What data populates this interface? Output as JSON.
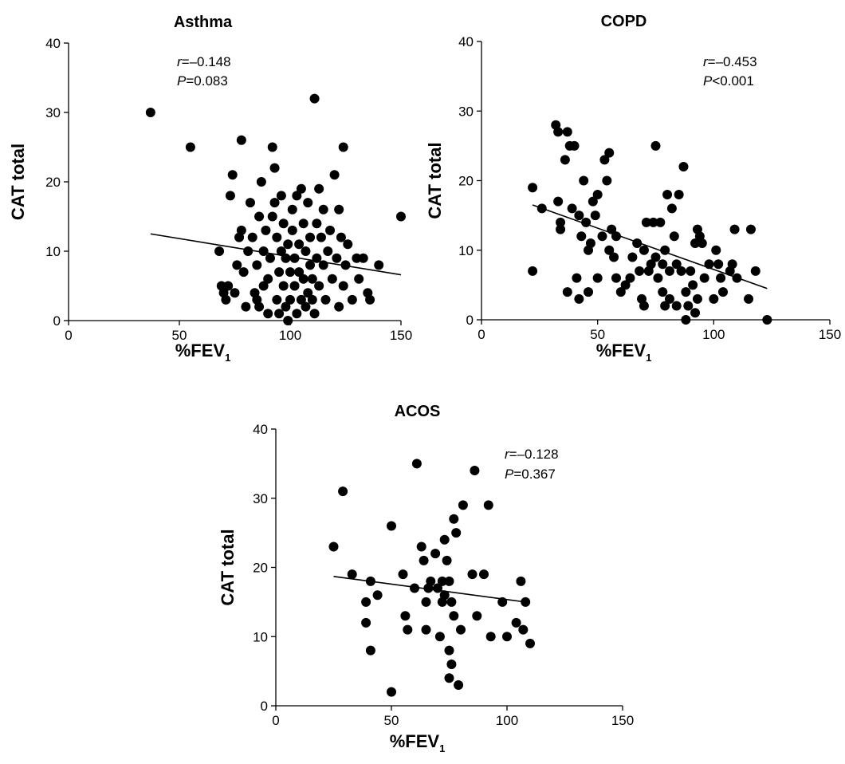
{
  "chart_data": [
    {
      "type": "scatter",
      "title": "Asthma",
      "xlabel": "%FEV",
      "xlabel_sub": "1",
      "ylabel": "CAT total",
      "xlim": [
        0,
        150
      ],
      "ylim": [
        0,
        40
      ],
      "xticks": [
        0,
        50,
        100,
        150
      ],
      "yticks": [
        0,
        10,
        20,
        30,
        40
      ],
      "annotation": {
        "r_label": "r",
        "r_value": "=–0.148",
        "p_label": "P",
        "p_value": "=0.083"
      },
      "fit": {
        "x": [
          37,
          150
        ],
        "y": [
          12.5,
          6.6
        ]
      },
      "points": [
        [
          37,
          30
        ],
        [
          55,
          25
        ],
        [
          68,
          10
        ],
        [
          69,
          5
        ],
        [
          70,
          4
        ],
        [
          71,
          3
        ],
        [
          72,
          5
        ],
        [
          73,
          18
        ],
        [
          74,
          21
        ],
        [
          75,
          4
        ],
        [
          76,
          8
        ],
        [
          77,
          12
        ],
        [
          78,
          26
        ],
        [
          78,
          13
        ],
        [
          79,
          7
        ],
        [
          80,
          2
        ],
        [
          81,
          10
        ],
        [
          82,
          17
        ],
        [
          83,
          12
        ],
        [
          84,
          4
        ],
        [
          85,
          8
        ],
        [
          85,
          3
        ],
        [
          86,
          15
        ],
        [
          86,
          2
        ],
        [
          87,
          20
        ],
        [
          88,
          10
        ],
        [
          88,
          5
        ],
        [
          89,
          13
        ],
        [
          90,
          6
        ],
        [
          90,
          1
        ],
        [
          91,
          9
        ],
        [
          92,
          15
        ],
        [
          92,
          25
        ],
        [
          93,
          22
        ],
        [
          93,
          17
        ],
        [
          94,
          3
        ],
        [
          94,
          12
        ],
        [
          95,
          7
        ],
        [
          95,
          1
        ],
        [
          96,
          18
        ],
        [
          96,
          10
        ],
        [
          97,
          5
        ],
        [
          97,
          14
        ],
        [
          98,
          9
        ],
        [
          98,
          2
        ],
        [
          99,
          0
        ],
        [
          99,
          11
        ],
        [
          100,
          7
        ],
        [
          100,
          3
        ],
        [
          101,
          16
        ],
        [
          101,
          13
        ],
        [
          102,
          9
        ],
        [
          102,
          5
        ],
        [
          103,
          18
        ],
        [
          103,
          1
        ],
        [
          104,
          11
        ],
        [
          104,
          7
        ],
        [
          105,
          19
        ],
        [
          105,
          3
        ],
        [
          106,
          14
        ],
        [
          106,
          6
        ],
        [
          107,
          10
        ],
        [
          107,
          2
        ],
        [
          108,
          17
        ],
        [
          108,
          4
        ],
        [
          109,
          12
        ],
        [
          109,
          8
        ],
        [
          110,
          6
        ],
        [
          110,
          3
        ],
        [
          111,
          32
        ],
        [
          111,
          1
        ],
        [
          112,
          9
        ],
        [
          112,
          14
        ],
        [
          113,
          19
        ],
        [
          113,
          5
        ],
        [
          114,
          12
        ],
        [
          115,
          16
        ],
        [
          115,
          8
        ],
        [
          116,
          3
        ],
        [
          117,
          10
        ],
        [
          118,
          13
        ],
        [
          119,
          6
        ],
        [
          120,
          21
        ],
        [
          121,
          9
        ],
        [
          122,
          16
        ],
        [
          122,
          2
        ],
        [
          123,
          12
        ],
        [
          124,
          25
        ],
        [
          124,
          5
        ],
        [
          125,
          8
        ],
        [
          126,
          11
        ],
        [
          128,
          3
        ],
        [
          130,
          9
        ],
        [
          131,
          6
        ],
        [
          133,
          9
        ],
        [
          135,
          4
        ],
        [
          136,
          3
        ],
        [
          140,
          8
        ],
        [
          150,
          15
        ]
      ]
    },
    {
      "type": "scatter",
      "title": "COPD",
      "xlabel": "%FEV",
      "xlabel_sub": "1",
      "ylabel": "CAT total",
      "xlim": [
        0,
        150
      ],
      "ylim": [
        0,
        40
      ],
      "xticks": [
        0,
        50,
        100,
        150
      ],
      "yticks": [
        0,
        10,
        20,
        30,
        40
      ],
      "annotation": {
        "r_label": "r",
        "r_value": "=–0.453",
        "p_label": "P",
        "p_value": "<0.001"
      },
      "fit": {
        "x": [
          22,
          123
        ],
        "y": [
          16.5,
          4.5
        ]
      },
      "points": [
        [
          22,
          19
        ],
        [
          22,
          7
        ],
        [
          26,
          16
        ],
        [
          32,
          28
        ],
        [
          33,
          27
        ],
        [
          33,
          17
        ],
        [
          34,
          14
        ],
        [
          34,
          13
        ],
        [
          36,
          23
        ],
        [
          37,
          4
        ],
        [
          37,
          27
        ],
        [
          38,
          25
        ],
        [
          39,
          16
        ],
        [
          40,
          25
        ],
        [
          41,
          6
        ],
        [
          42,
          15
        ],
        [
          42,
          3
        ],
        [
          43,
          12
        ],
        [
          44,
          20
        ],
        [
          45,
          14
        ],
        [
          46,
          10
        ],
        [
          46,
          4
        ],
        [
          47,
          11
        ],
        [
          48,
          17
        ],
        [
          49,
          15
        ],
        [
          50,
          6
        ],
        [
          50,
          18
        ],
        [
          52,
          12
        ],
        [
          53,
          23
        ],
        [
          54,
          20
        ],
        [
          55,
          10
        ],
        [
          55,
          24
        ],
        [
          56,
          13
        ],
        [
          57,
          9
        ],
        [
          58,
          12
        ],
        [
          58,
          6
        ],
        [
          60,
          4
        ],
        [
          62,
          5
        ],
        [
          64,
          6
        ],
        [
          65,
          9
        ],
        [
          67,
          11
        ],
        [
          68,
          7
        ],
        [
          69,
          3
        ],
        [
          70,
          10
        ],
        [
          70,
          2
        ],
        [
          71,
          14
        ],
        [
          72,
          7
        ],
        [
          73,
          8
        ],
        [
          74,
          14
        ],
        [
          75,
          25
        ],
        [
          75,
          9
        ],
        [
          76,
          6
        ],
        [
          77,
          14
        ],
        [
          78,
          8
        ],
        [
          78,
          4
        ],
        [
          79,
          10
        ],
        [
          79,
          2
        ],
        [
          80,
          18
        ],
        [
          81,
          7
        ],
        [
          81,
          3
        ],
        [
          82,
          16
        ],
        [
          83,
          12
        ],
        [
          84,
          8
        ],
        [
          84,
          2
        ],
        [
          85,
          18
        ],
        [
          86,
          7
        ],
        [
          87,
          22
        ],
        [
          88,
          4
        ],
        [
          88,
          0
        ],
        [
          89,
          2
        ],
        [
          90,
          7
        ],
        [
          91,
          5
        ],
        [
          92,
          11
        ],
        [
          92,
          1
        ],
        [
          93,
          13
        ],
        [
          93,
          3
        ],
        [
          94,
          12
        ],
        [
          95,
          11
        ],
        [
          96,
          6
        ],
        [
          98,
          8
        ],
        [
          100,
          3
        ],
        [
          101,
          10
        ],
        [
          102,
          8
        ],
        [
          103,
          6
        ],
        [
          104,
          4
        ],
        [
          107,
          7
        ],
        [
          108,
          8
        ],
        [
          109,
          13
        ],
        [
          110,
          6
        ],
        [
          115,
          3
        ],
        [
          116,
          13
        ],
        [
          118,
          7
        ],
        [
          123,
          0
        ]
      ]
    },
    {
      "type": "scatter",
      "title": "ACOS",
      "xlabel": "%FEV",
      "xlabel_sub": "1",
      "ylabel": "CAT total",
      "xlim": [
        0,
        150
      ],
      "ylim": [
        0,
        40
      ],
      "xticks": [
        0,
        50,
        100,
        150
      ],
      "yticks": [
        0,
        10,
        20,
        30,
        40
      ],
      "annotation": {
        "r_label": "r",
        "r_value": "=–0.128",
        "p_label": "P",
        "p_value": "=0.367"
      },
      "fit": {
        "x": [
          25,
          108
        ],
        "y": [
          18.7,
          15.0
        ]
      },
      "points": [
        [
          25,
          23
        ],
        [
          29,
          31
        ],
        [
          33,
          19
        ],
        [
          39,
          15
        ],
        [
          39,
          12
        ],
        [
          41,
          8
        ],
        [
          41,
          18
        ],
        [
          44,
          16
        ],
        [
          50,
          26
        ],
        [
          50,
          2
        ],
        [
          55,
          19
        ],
        [
          56,
          13
        ],
        [
          57,
          11
        ],
        [
          60,
          17
        ],
        [
          61,
          35
        ],
        [
          63,
          23
        ],
        [
          64,
          21
        ],
        [
          65,
          15
        ],
        [
          65,
          11
        ],
        [
          66,
          17
        ],
        [
          67,
          18
        ],
        [
          69,
          22
        ],
        [
          70,
          17
        ],
        [
          71,
          10
        ],
        [
          72,
          15
        ],
        [
          72,
          18
        ],
        [
          73,
          24
        ],
        [
          73,
          16
        ],
        [
          74,
          21
        ],
        [
          75,
          18
        ],
        [
          75,
          4
        ],
        [
          75,
          8
        ],
        [
          76,
          15
        ],
        [
          76,
          6
        ],
        [
          77,
          13
        ],
        [
          77,
          27
        ],
        [
          78,
          25
        ],
        [
          79,
          3
        ],
        [
          80,
          11
        ],
        [
          81,
          29
        ],
        [
          85,
          19
        ],
        [
          86,
          34
        ],
        [
          87,
          13
        ],
        [
          90,
          19
        ],
        [
          92,
          29
        ],
        [
          93,
          10
        ],
        [
          98,
          15
        ],
        [
          100,
          10
        ],
        [
          104,
          12
        ],
        [
          106,
          18
        ],
        [
          107,
          11
        ],
        [
          108,
          15
        ],
        [
          110,
          9
        ]
      ]
    }
  ]
}
